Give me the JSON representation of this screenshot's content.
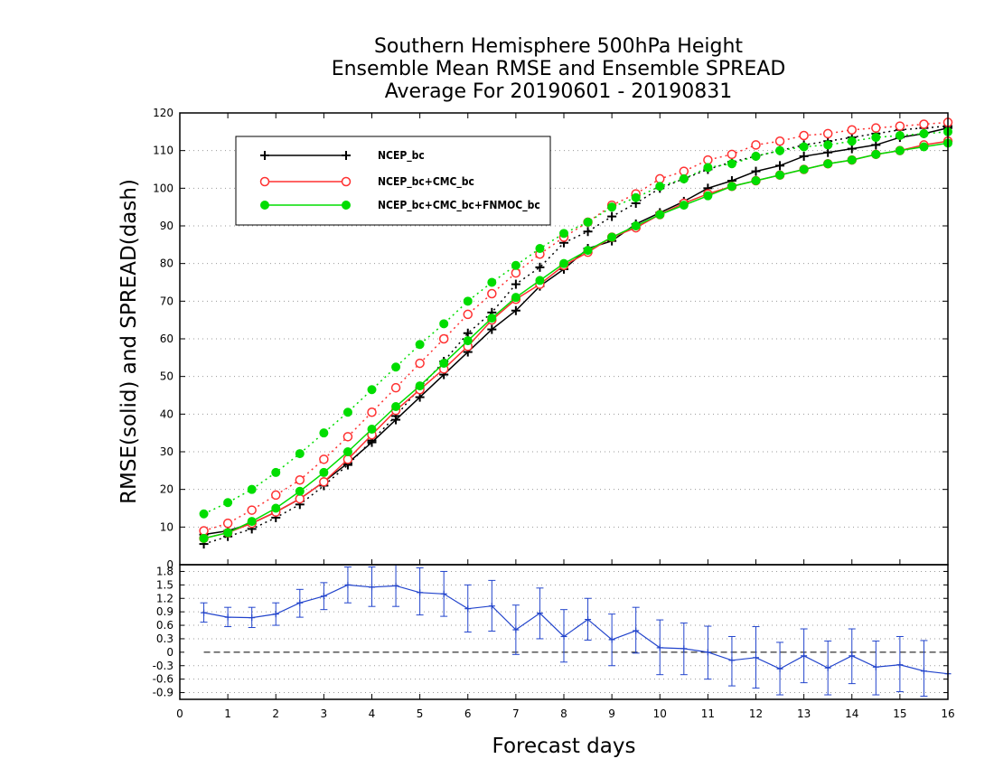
{
  "chart_data": {
    "type": "line",
    "title_lines": [
      "Southern Hemisphere 500hPa Height",
      "Ensemble Mean RMSE and Ensemble SPREAD",
      "Average For 20190601 - 20190831"
    ],
    "xlabel": "Forecast days",
    "ylabel": "RMSE(solid) and SPREAD(dash)",
    "xlim": [
      0,
      16
    ],
    "ylim": [
      0,
      120
    ],
    "xticks": [
      "0",
      "1",
      "2",
      "3",
      "4",
      "5",
      "6",
      "7",
      "8",
      "9",
      "10",
      "11",
      "12",
      "13",
      "14",
      "15",
      "16"
    ],
    "yticks": [
      "0",
      "10",
      "20",
      "30",
      "40",
      "50",
      "60",
      "70",
      "80",
      "90",
      "100",
      "110",
      "120"
    ],
    "grid": true,
    "legend_position": "top-left",
    "x": [
      0.5,
      1,
      1.5,
      2,
      2.5,
      3,
      3.5,
      4,
      4.5,
      5,
      5.5,
      6,
      6.5,
      7,
      7.5,
      8,
      8.5,
      9,
      9.5,
      10,
      10.5,
      11,
      11.5,
      12,
      12.5,
      13,
      13.5,
      14,
      14.5,
      15,
      15.5,
      16
    ],
    "series": [
      {
        "name": "NCEP_bc",
        "color": "#000000",
        "marker": "plus",
        "rmse": [
          8,
          9,
          11,
          14,
          17.5,
          22,
          27,
          32.5,
          38.5,
          44.5,
          50.5,
          56.5,
          62.5,
          67.5,
          74,
          78.5,
          84,
          86,
          90.5,
          93.5,
          96.5,
          100,
          102,
          104.5,
          106,
          108.5,
          109.5,
          110.5,
          111.5,
          113.5,
          114.5,
          116
        ],
        "spread": [
          5.5,
          7.5,
          9.5,
          12.5,
          16,
          21,
          26.5,
          33,
          39.5,
          47,
          54,
          61.5,
          67,
          74.5,
          79,
          85.5,
          88.5,
          92.5,
          96,
          100,
          102.5,
          105,
          107,
          108.5,
          110,
          111.5,
          112.5,
          113.5,
          114.5,
          115.5,
          116,
          116.5
        ]
      },
      {
        "name": "NCEP_bc+CMC_bc",
        "color": "#ff3030",
        "marker": "open-circle",
        "rmse": [
          7,
          8.5,
          11,
          14,
          17.5,
          22,
          28,
          34.5,
          41,
          46.5,
          52,
          58,
          65,
          70.5,
          74.5,
          79.5,
          83,
          87,
          89.5,
          93,
          96,
          98.5,
          100.5,
          102,
          103.5,
          105,
          106.5,
          107.5,
          109,
          110,
          111.5,
          112.5
        ],
        "spread": [
          9,
          11,
          14.5,
          18.5,
          22.5,
          28,
          34,
          40.5,
          47,
          53.5,
          60,
          66.5,
          72,
          77.5,
          82.5,
          87,
          91,
          95.5,
          98.5,
          102.5,
          104.5,
          107.5,
          109,
          111.5,
          112.5,
          114,
          114.5,
          115.5,
          116,
          116.5,
          117,
          117.5
        ]
      },
      {
        "name": "NCEP_bc+CMC_bc+FNMOC_bc",
        "color": "#00dd00",
        "marker": "filled-circle",
        "rmse": [
          7,
          8.5,
          11.5,
          15,
          19.5,
          24.5,
          30,
          36,
          42,
          47.5,
          53.5,
          59.5,
          65.5,
          71,
          75.5,
          80,
          83.5,
          87,
          90,
          93,
          95.5,
          98,
          100.5,
          102,
          103.5,
          105,
          106.5,
          107.5,
          109,
          110,
          111,
          112
        ],
        "spread": [
          13.5,
          16.5,
          20,
          24.5,
          29.5,
          35,
          40.5,
          46.5,
          52.5,
          58.5,
          64,
          70,
          75,
          79.5,
          84,
          88,
          91,
          95,
          97.5,
          100.5,
          102.5,
          105.5,
          106.5,
          108.5,
          110,
          111,
          111.5,
          112.5,
          113.5,
          114,
          114.5,
          115
        ]
      }
    ],
    "difference_panel": {
      "color": "#2244cc",
      "ylim": [
        -1.05,
        1.95
      ],
      "yticks": [
        "-0.9",
        "-0.6",
        "-0.3",
        "0",
        "0.3",
        "0.6",
        "0.9",
        "1.2",
        "1.5",
        "1.8"
      ],
      "zero_line": true,
      "values": [
        0.88,
        0.78,
        0.77,
        0.85,
        1.1,
        1.25,
        1.5,
        1.45,
        1.48,
        1.33,
        1.3,
        0.97,
        1.03,
        0.5,
        0.87,
        0.35,
        0.73,
        0.28,
        0.48,
        0.1,
        0.08,
        0.0,
        -0.18,
        -0.12,
        -0.37,
        -0.08,
        -0.35,
        -0.08,
        -0.33,
        -0.28,
        -0.42,
        -0.48
      ],
      "err_upper": [
        1.1,
        1.0,
        1.0,
        1.1,
        1.4,
        1.55,
        1.9,
        1.9,
        1.95,
        1.88,
        1.8,
        1.5,
        1.6,
        1.05,
        1.43,
        0.95,
        1.2,
        0.85,
        1.0,
        0.72,
        0.65,
        0.58,
        0.35,
        0.57,
        0.22,
        0.52,
        0.25,
        0.52,
        0.25,
        0.35,
        0.26,
        null
      ],
      "err_lower": [
        0.67,
        0.57,
        0.55,
        0.6,
        0.78,
        0.95,
        1.1,
        1.02,
        1.02,
        0.83,
        0.8,
        0.45,
        0.47,
        -0.05,
        0.3,
        -0.22,
        0.27,
        -0.3,
        -0.02,
        -0.5,
        -0.5,
        -0.6,
        -0.75,
        -0.8,
        -0.95,
        -0.68,
        -0.95,
        -0.7,
        -0.95,
        -0.88,
        -0.98,
        null
      ]
    }
  }
}
